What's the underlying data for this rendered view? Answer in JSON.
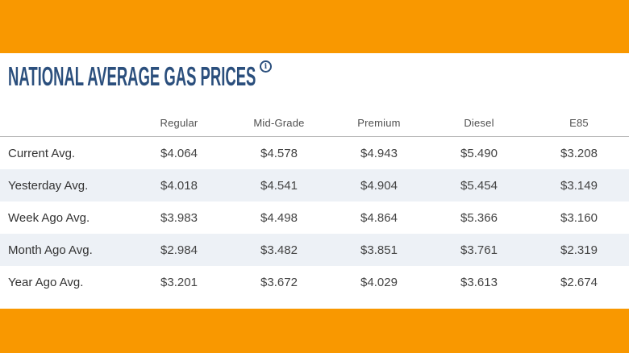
{
  "header": {
    "title": "NATIONAL AVERAGE GAS PRICES",
    "info_glyph": "i"
  },
  "table": {
    "columns": [
      "Regular",
      "Mid-Grade",
      "Premium",
      "Diesel",
      "E85"
    ],
    "rows": [
      {
        "label": "Current Avg.",
        "values": [
          "$4.064",
          "$4.578",
          "$4.943",
          "$5.490",
          "$3.208"
        ]
      },
      {
        "label": "Yesterday Avg.",
        "values": [
          "$4.018",
          "$4.541",
          "$4.904",
          "$5.454",
          "$3.149"
        ]
      },
      {
        "label": "Week Ago Avg.",
        "values": [
          "$3.983",
          "$4.498",
          "$4.864",
          "$5.366",
          "$3.160"
        ]
      },
      {
        "label": "Month Ago Avg.",
        "values": [
          "$2.984",
          "$3.482",
          "$3.851",
          "$3.761",
          "$2.319"
        ]
      },
      {
        "label": "Year Ago Avg.",
        "values": [
          "$3.201",
          "$3.672",
          "$4.029",
          "$3.613",
          "$2.674"
        ]
      }
    ]
  },
  "colors": {
    "accent_orange": "#F99800",
    "title_navy": "#2B4F7D",
    "row_alt_bg": "#EDF1F6",
    "divider_gray": "#B2B2B2",
    "header_text": "#4F4F4F",
    "body_text": "#333333"
  }
}
